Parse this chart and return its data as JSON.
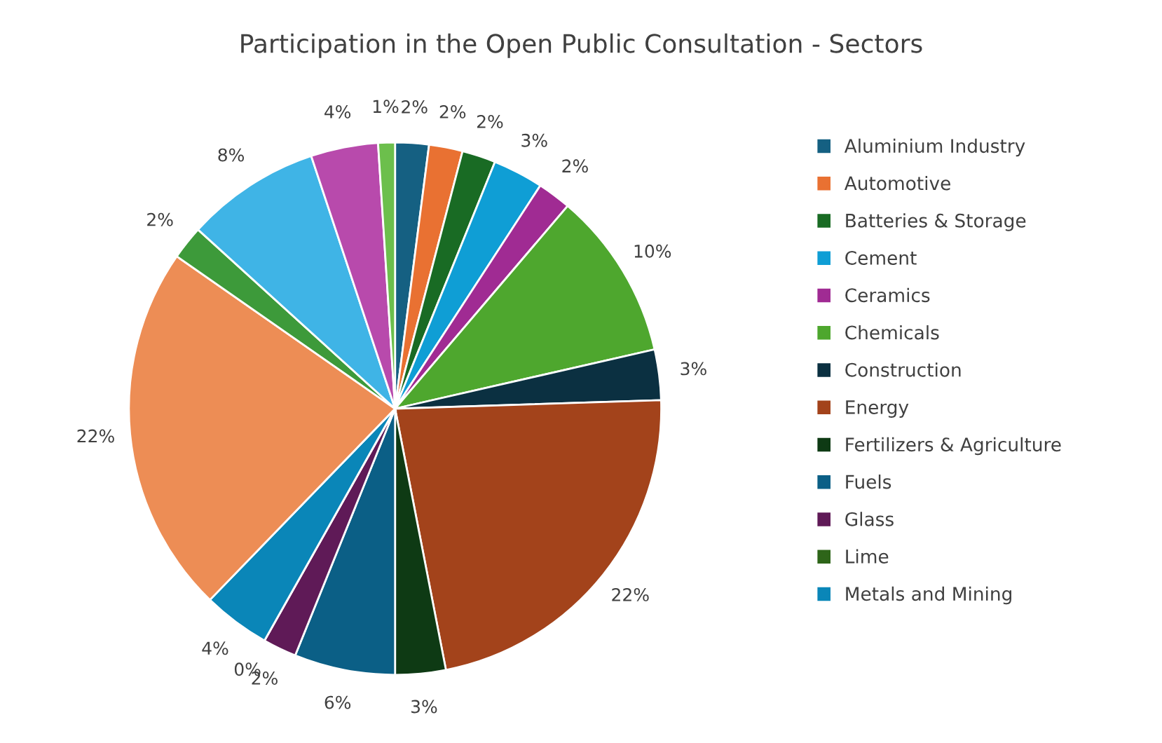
{
  "chart_data": {
    "type": "pie",
    "title": "Participation in the Open Public Consultation - Sectors",
    "categories": [
      "Aluminium Industry",
      "Automotive",
      "Batteries & Storage",
      "Cement",
      "Ceramics",
      "Chemicals",
      "Construction",
      "Energy",
      "Fertilizers & Agriculture",
      "Fuels",
      "Glass",
      "Lime",
      "Metals and Mining",
      null,
      null,
      null,
      null,
      null
    ],
    "values": [
      2,
      2,
      2,
      3,
      2,
      10,
      3,
      22,
      3,
      6,
      2,
      0,
      4,
      22,
      2,
      8,
      4,
      1
    ],
    "value_labels": [
      "2%",
      "2%",
      "2%",
      "3%",
      "2%",
      "10%",
      "3%",
      "22%",
      "3%",
      "6%",
      "2%",
      "0%",
      "4%",
      "22%",
      "2%",
      "8%",
      "4%",
      "1%"
    ],
    "colors": [
      "#156082",
      "#e97132",
      "#196b24",
      "#0f9ed5",
      "#a02b93",
      "#4ea72e",
      "#0b3041",
      "#a3431b",
      "#0e3a14",
      "#0b5f86",
      "#5f1a57",
      "#2e6519",
      "#0a86b8",
      "#ed8d55",
      "#3d9a3a",
      "#3fb4e6",
      "#b84aac",
      "#6cbf4c"
    ],
    "legend": "right"
  }
}
